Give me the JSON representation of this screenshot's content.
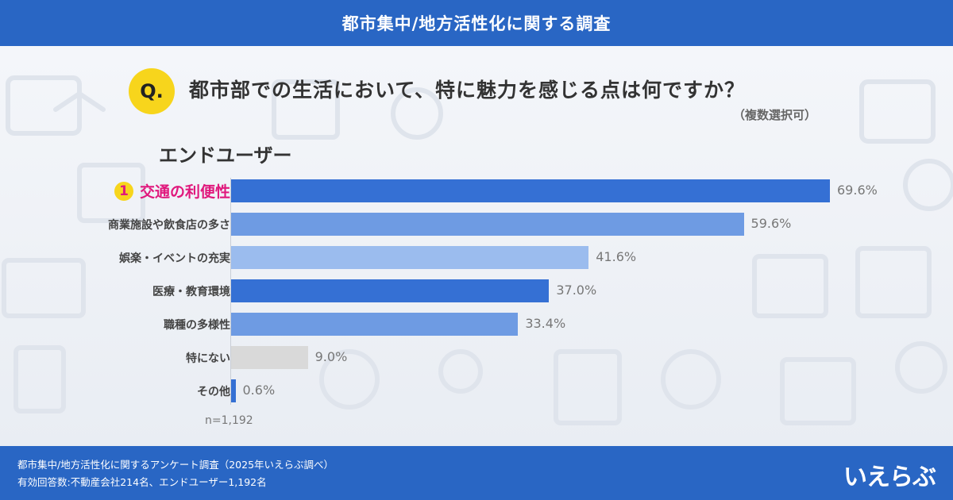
{
  "header": {
    "title": "都市集中/地方活性化に関する調査"
  },
  "question": {
    "badge": "Q.",
    "text": "都市部での生活において、特に魅力を感じる点は何ですか？",
    "note": "（複数選択可）"
  },
  "group_label": "エンドユーザー",
  "top_rank": "1",
  "sample": "n=1,192",
  "footer": {
    "line1": "都市集中/地方活性化に関するアンケート調査（2025年いえらぶ調べ）",
    "line2": "有効回答数:不動産会社214名、エンドユーザー1,192名",
    "logo": "いえらぶ"
  },
  "colors": {
    "header": "#2966c4",
    "highlight": "#e0197d",
    "badge": "#f7d51c"
  },
  "chart_data": {
    "type": "bar",
    "orientation": "horizontal",
    "categories": [
      "交通の利便性",
      "商業施設や飲食店の多さ",
      "娯楽・イベントの充実",
      "医療・教育環境",
      "職種の多様性",
      "特にない",
      "その他"
    ],
    "values": [
      69.6,
      59.6,
      41.6,
      37.0,
      33.4,
      9.0,
      0.6
    ],
    "value_labels": [
      "69.6%",
      "59.6%",
      "41.6%",
      "37.0%",
      "33.4%",
      "9.0%",
      "0.6%"
    ],
    "bar_colors": [
      "#3570d4",
      "#6e9be3",
      "#9bbcee",
      "#3570d4",
      "#6e9be3",
      "#d9d9d9",
      "#3570d4"
    ],
    "xlim": [
      0,
      69.6
    ],
    "grid": false
  }
}
